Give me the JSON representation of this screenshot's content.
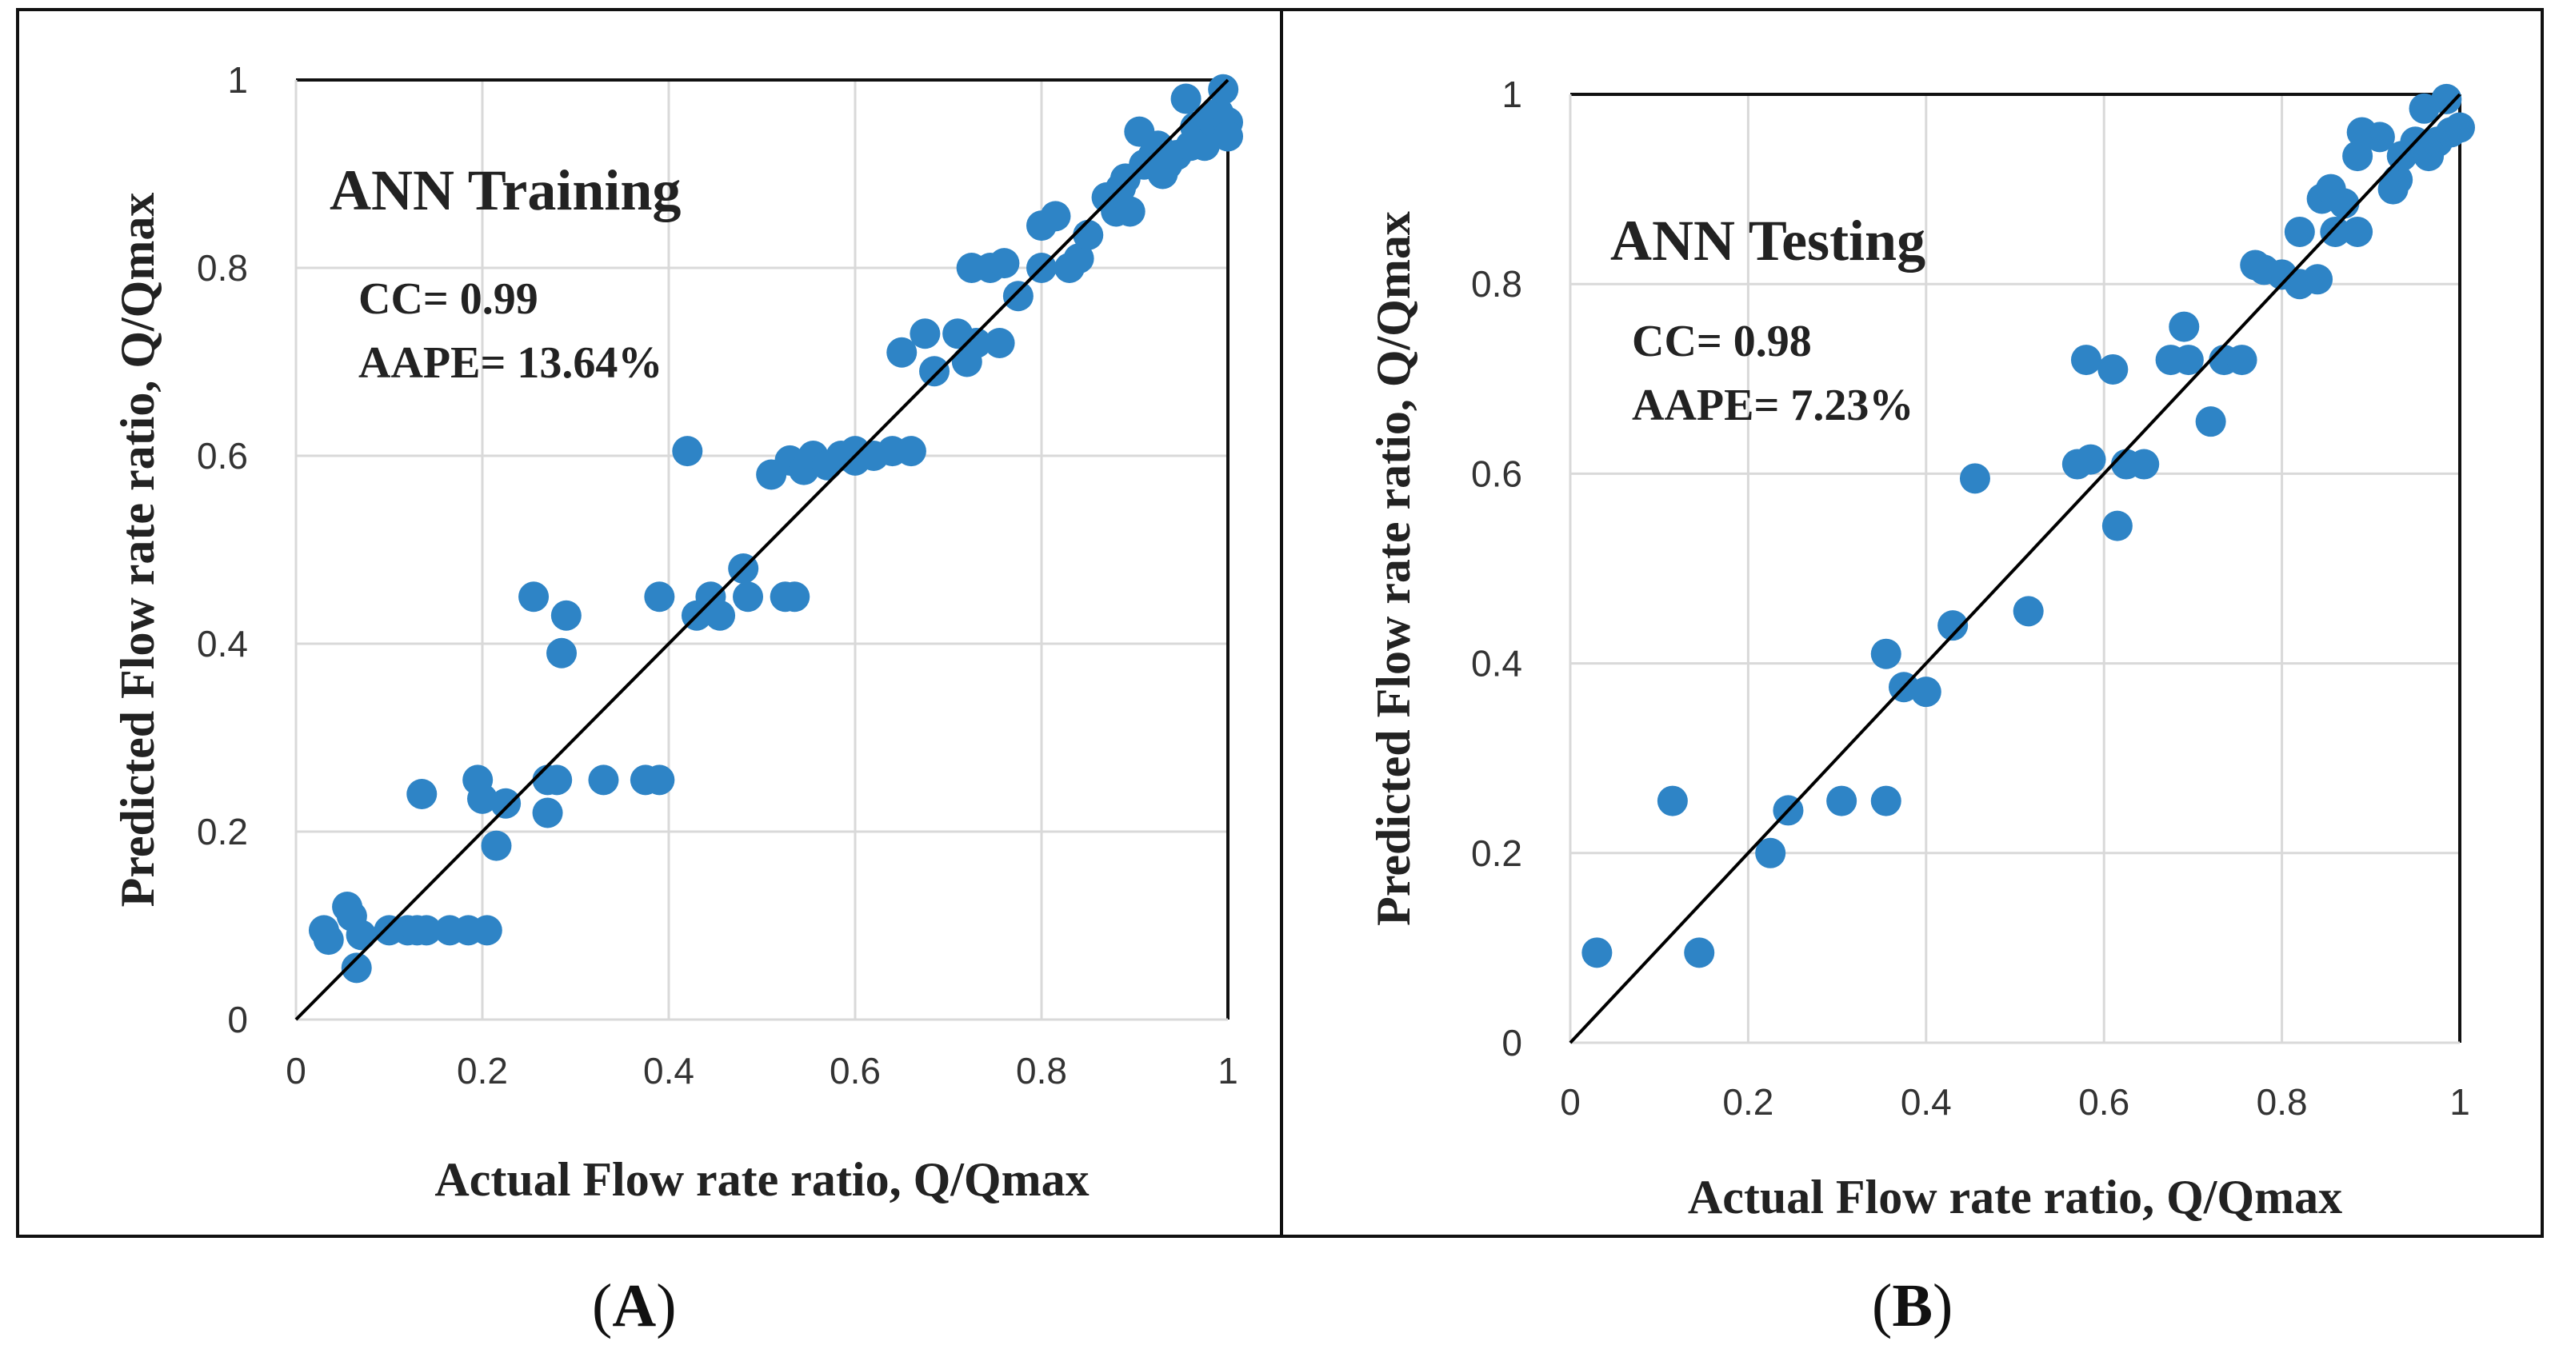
{
  "colors": {
    "point": "#2e84c6",
    "grid": "#d9d9d9",
    "fit": "#000000",
    "border": "#111111"
  },
  "chart_data": [
    {
      "type": "scatter",
      "title": "ANN Training",
      "stats": [
        "CC= 0.99",
        "AAPE= 13.64%"
      ],
      "xlabel": "Actual Flow rate ratio, Q/Qmax",
      "ylabel": "Predicted  Flow rate ratio, Q/Qmax",
      "xlim": [
        0,
        1
      ],
      "ylim": [
        0,
        1
      ],
      "xticks": [
        "0",
        "0.2",
        "0.4",
        "0.6",
        "0.8",
        "1"
      ],
      "yticks": [
        "0",
        "0.2",
        "0.4",
        "0.6",
        "0.8",
        "1"
      ],
      "grid": true,
      "fit_line": [
        [
          0,
          0
        ],
        [
          1,
          1
        ]
      ],
      "caption": "A",
      "points": [
        [
          0.03,
          0.095
        ],
        [
          0.035,
          0.085
        ],
        [
          0.055,
          0.12
        ],
        [
          0.06,
          0.11
        ],
        [
          0.065,
          0.055
        ],
        [
          0.07,
          0.09
        ],
        [
          0.1,
          0.095
        ],
        [
          0.12,
          0.095
        ],
        [
          0.13,
          0.095
        ],
        [
          0.14,
          0.095
        ],
        [
          0.135,
          0.24
        ],
        [
          0.165,
          0.095
        ],
        [
          0.185,
          0.095
        ],
        [
          0.205,
          0.095
        ],
        [
          0.195,
          0.255
        ],
        [
          0.2,
          0.235
        ],
        [
          0.215,
          0.185
        ],
        [
          0.225,
          0.23
        ],
        [
          0.255,
          0.45
        ],
        [
          0.27,
          0.22
        ],
        [
          0.27,
          0.255
        ],
        [
          0.28,
          0.255
        ],
        [
          0.285,
          0.39
        ],
        [
          0.29,
          0.43
        ],
        [
          0.33,
          0.255
        ],
        [
          0.375,
          0.255
        ],
        [
          0.39,
          0.255
        ],
        [
          0.39,
          0.45
        ],
        [
          0.42,
          0.605
        ],
        [
          0.43,
          0.43
        ],
        [
          0.445,
          0.45
        ],
        [
          0.455,
          0.43
        ],
        [
          0.48,
          0.48
        ],
        [
          0.485,
          0.45
        ],
        [
          0.525,
          0.45
        ],
        [
          0.535,
          0.45
        ],
        [
          0.51,
          0.58
        ],
        [
          0.53,
          0.595
        ],
        [
          0.545,
          0.585
        ],
        [
          0.555,
          0.6
        ],
        [
          0.57,
          0.59
        ],
        [
          0.585,
          0.6
        ],
        [
          0.6,
          0.605
        ],
        [
          0.6,
          0.595
        ],
        [
          0.62,
          0.6
        ],
        [
          0.64,
          0.605
        ],
        [
          0.65,
          0.71
        ],
        [
          0.66,
          0.605
        ],
        [
          0.675,
          0.73
        ],
        [
          0.685,
          0.69
        ],
        [
          0.71,
          0.73
        ],
        [
          0.725,
          0.8
        ],
        [
          0.72,
          0.7
        ],
        [
          0.73,
          0.72
        ],
        [
          0.745,
          0.8
        ],
        [
          0.755,
          0.72
        ],
        [
          0.76,
          0.805
        ],
        [
          0.775,
          0.77
        ],
        [
          0.8,
          0.8
        ],
        [
          0.8,
          0.845
        ],
        [
          0.815,
          0.855
        ],
        [
          0.83,
          0.8
        ],
        [
          0.84,
          0.81
        ],
        [
          0.85,
          0.835
        ],
        [
          0.87,
          0.875
        ],
        [
          0.88,
          0.86
        ],
        [
          0.885,
          0.885
        ],
        [
          0.89,
          0.895
        ],
        [
          0.895,
          0.86
        ],
        [
          0.905,
          0.945
        ],
        [
          0.91,
          0.91
        ],
        [
          0.92,
          0.92
        ],
        [
          0.925,
          0.93
        ],
        [
          0.93,
          0.9
        ],
        [
          0.935,
          0.91
        ],
        [
          0.945,
          0.92
        ],
        [
          0.955,
          0.98
        ],
        [
          0.96,
          0.93
        ],
        [
          0.965,
          0.95
        ],
        [
          0.97,
          0.94
        ],
        [
          0.975,
          0.93
        ],
        [
          0.98,
          0.96
        ],
        [
          0.985,
          0.955
        ],
        [
          0.99,
          0.965
        ],
        [
          0.995,
          0.99
        ],
        [
          1.0,
          0.955
        ],
        [
          1.0,
          0.94
        ]
      ]
    },
    {
      "type": "scatter",
      "title": "ANN Testing",
      "stats": [
        "CC= 0.98",
        "AAPE= 7.23%"
      ],
      "xlabel": "Actual Flow rate ratio, Q/Qmax",
      "ylabel": "Predicted  Flow rate ratio, Q/Qmax",
      "xlim": [
        0,
        1
      ],
      "ylim": [
        0,
        1
      ],
      "xticks": [
        "0",
        "0.2",
        "0.4",
        "0.6",
        "0.8",
        "1"
      ],
      "yticks": [
        "0",
        "0.2",
        "0.4",
        "0.6",
        "0.8",
        "1"
      ],
      "grid": true,
      "fit_line": [
        [
          0,
          0
        ],
        [
          1,
          1
        ]
      ],
      "caption": "B",
      "points": [
        [
          0.03,
          0.095
        ],
        [
          0.115,
          0.255
        ],
        [
          0.145,
          0.095
        ],
        [
          0.225,
          0.2
        ],
        [
          0.245,
          0.245
        ],
        [
          0.305,
          0.255
        ],
        [
          0.355,
          0.255
        ],
        [
          0.355,
          0.41
        ],
        [
          0.375,
          0.375
        ],
        [
          0.4,
          0.37
        ],
        [
          0.43,
          0.44
        ],
        [
          0.455,
          0.595
        ],
        [
          0.515,
          0.455
        ],
        [
          0.57,
          0.61
        ],
        [
          0.58,
          0.72
        ],
        [
          0.585,
          0.615
        ],
        [
          0.61,
          0.71
        ],
        [
          0.615,
          0.545
        ],
        [
          0.625,
          0.61
        ],
        [
          0.645,
          0.61
        ],
        [
          0.675,
          0.72
        ],
        [
          0.69,
          0.755
        ],
        [
          0.695,
          0.72
        ],
        [
          0.72,
          0.655
        ],
        [
          0.735,
          0.72
        ],
        [
          0.755,
          0.72
        ],
        [
          0.77,
          0.82
        ],
        [
          0.78,
          0.815
        ],
        [
          0.8,
          0.81
        ],
        [
          0.82,
          0.855
        ],
        [
          0.82,
          0.8
        ],
        [
          0.84,
          0.805
        ],
        [
          0.845,
          0.89
        ],
        [
          0.855,
          0.9
        ],
        [
          0.86,
          0.855
        ],
        [
          0.87,
          0.885
        ],
        [
          0.885,
          0.855
        ],
        [
          0.885,
          0.935
        ],
        [
          0.89,
          0.96
        ],
        [
          0.91,
          0.955
        ],
        [
          0.925,
          0.9
        ],
        [
          0.93,
          0.91
        ],
        [
          0.935,
          0.935
        ],
        [
          0.95,
          0.95
        ],
        [
          0.96,
          0.985
        ],
        [
          0.965,
          0.935
        ],
        [
          0.975,
          0.95
        ],
        [
          0.985,
          0.995
        ],
        [
          0.99,
          0.96
        ],
        [
          1.0,
          0.965
        ]
      ]
    }
  ]
}
